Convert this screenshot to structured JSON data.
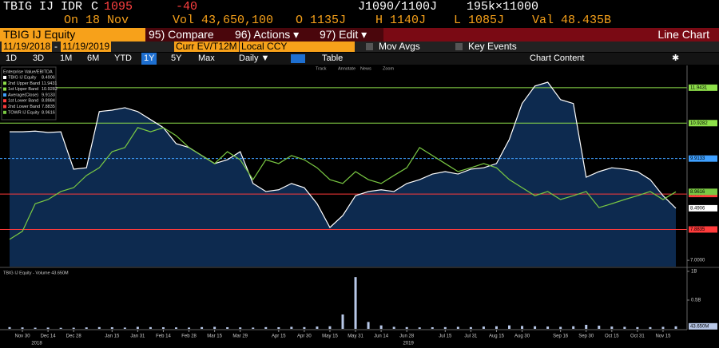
{
  "header": {
    "ticker": "TBIG IJ",
    "currency": "IDR",
    "price_flag": "C",
    "price": "1095",
    "change": "-40",
    "bid_ask": "J1090/1100J",
    "size": "195k×11000",
    "date": "On 18 Nov",
    "volume": "Vol 43,650,100",
    "open": "O 1135J",
    "high": "H 1140J",
    "low": "L 1085J",
    "value": "Val 48.435B"
  },
  "menu": {
    "security": "TBIG IJ Equity",
    "items": [
      "95) Compare",
      "96) Actions ▾",
      "97) Edit ▾"
    ],
    "view": "Line Chart"
  },
  "settings": {
    "start": "11/19/2018",
    "separator": "-",
    "end": "11/19/2019",
    "field": "Curr EV/T12M",
    "currency": "Local CCY",
    "options": [
      "Mov Avgs",
      "Key Events"
    ]
  },
  "periods": {
    "items": [
      "1D",
      "3D",
      "1M",
      "6M",
      "YTD",
      "1Y",
      "5Y",
      "Max"
    ],
    "selected": "1Y",
    "frequency": "Daily ▼",
    "table": "Table",
    "content": "Chart Content"
  },
  "chart_tools": [
    "Track",
    "Annotate",
    "News",
    "Zoom"
  ],
  "chart_data": [
    {
      "type": "line",
      "legend_title": "Enterprise Value/EBITDA",
      "categories": [
        null,
        "Nov 30",
        null,
        "Dec 14",
        null,
        "Dec 28",
        null,
        null,
        "Jan 15",
        null,
        "Jan 31",
        null,
        "Feb 14",
        null,
        "Feb 28",
        null,
        "Mar 15",
        null,
        "Mar 29",
        null,
        null,
        "Apr 15",
        null,
        "Apr 30",
        null,
        "May 15",
        null,
        "May 31",
        null,
        "Jun 14",
        null,
        "Jun 28",
        null,
        null,
        "Jul 15",
        null,
        "Jul 31",
        null,
        "Aug 15",
        null,
        "Aug 30",
        null,
        null,
        "Sep 16",
        null,
        "Sep 30",
        null,
        "Oct 15",
        null,
        "Oct 31",
        null,
        "Nov 15",
        null
      ],
      "x_year_labels": [
        "2018",
        "2019"
      ],
      "series": [
        {
          "name": "TBIG IJ Equity",
          "color": "#ffffff",
          "values": [
            10.68,
            10.68,
            10.7,
            10.66,
            10.68,
            9.61,
            9.65,
            11.26,
            11.3,
            11.37,
            11.26,
            11.03,
            10.8,
            10.34,
            10.23,
            10.0,
            9.77,
            9.88,
            10.11,
            9.2,
            8.97,
            9.02,
            9.2,
            9.08,
            8.62,
            7.94,
            8.28,
            8.85,
            8.97,
            9.02,
            8.97,
            9.2,
            9.31,
            9.47,
            9.54,
            9.47,
            9.61,
            9.65,
            9.77,
            10.46,
            11.49,
            11.99,
            12.1,
            11.6,
            11.49,
            9.38,
            9.54,
            9.65,
            9.61,
            9.54,
            9.31,
            8.85,
            8.4906
          ]
        },
        {
          "name": "TOWR IJ Equity",
          "color": "#7ac943",
          "values": [
            7.6,
            7.83,
            8.62,
            8.74,
            8.97,
            9.08,
            9.43,
            9.65,
            10.11,
            10.23,
            10.8,
            10.68,
            10.8,
            10.57,
            10.23,
            10.0,
            9.77,
            10.11,
            9.88,
            9.31,
            9.88,
            9.77,
            10.0,
            9.88,
            9.65,
            9.31,
            9.2,
            9.54,
            9.31,
            9.2,
            9.43,
            9.65,
            10.23,
            10.0,
            9.77,
            9.54,
            9.65,
            9.77,
            9.65,
            9.31,
            9.08,
            8.85,
            8.97,
            8.74,
            8.85,
            8.97,
            8.51,
            8.62,
            8.74,
            8.85,
            8.97,
            8.74,
            8.9616
          ]
        }
      ],
      "bands": [
        {
          "name": "2nd Upper Band",
          "value": 11.9431,
          "color": "#8ee04a"
        },
        {
          "name": "1st Upper Band",
          "value": 10.9282,
          "color": "#8ee04a"
        },
        {
          "name": "Average(Close)",
          "value": 9.9133,
          "color": "#3fa0ff"
        },
        {
          "name": "1st Lower Band",
          "value": 8.8984,
          "color": "#ff3b3b"
        },
        {
          "name": "2nd Lower Band",
          "value": 7.8835,
          "color": "#ff3b3b"
        }
      ],
      "ylim": [
        6.82,
        12.58
      ],
      "yticks": [
        {
          "value": 7,
          "label": "7.0000"
        }
      ],
      "fill": "#0d2a4f"
    },
    {
      "type": "bar",
      "title": "TBIG IJ Equity - Volume 43.650M",
      "color": "#b8c8e8",
      "values": [
        30000000,
        25000000,
        20000000,
        22000000,
        18000000,
        20000000,
        25000000,
        30000000,
        28000000,
        22000000,
        35000000,
        30000000,
        28000000,
        25000000,
        22000000,
        30000000,
        35000000,
        28000000,
        25000000,
        22000000,
        30000000,
        28000000,
        35000000,
        30000000,
        40000000,
        45000000,
        250000000,
        900000000,
        120000000,
        60000000,
        35000000,
        30000000,
        25000000,
        28000000,
        30000000,
        35000000,
        30000000,
        40000000,
        45000000,
        60000000,
        50000000,
        45000000,
        40000000,
        35000000,
        45000000,
        70000000,
        55000000,
        40000000,
        35000000,
        30000000,
        30000000,
        35000000,
        43650000
      ],
      "last_label": "43.650M",
      "ylim": [
        0,
        1055000000
      ],
      "yticks": [
        {
          "value": 1000000000,
          "label": "1B"
        },
        {
          "value": 500000000,
          "label": "0.5B"
        }
      ]
    }
  ]
}
